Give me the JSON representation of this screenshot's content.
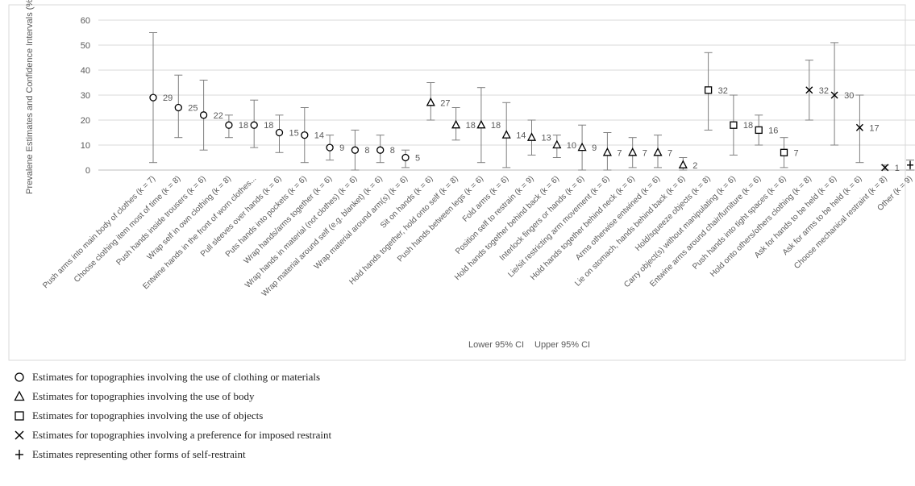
{
  "chart_data": {
    "type": "scatter",
    "ylabel": "Prevalene Estimates and Confidence Intervals (%)",
    "ylim": [
      0,
      60
    ],
    "yticks": [
      0,
      10,
      20,
      30,
      40,
      50,
      60
    ],
    "grid": "horizontal",
    "ci_legend": [
      "Lower 95% CI",
      "Upper 95% CI"
    ],
    "points": [
      {
        "category": "Push arms into main body of clothes (k = 7)",
        "value": 29,
        "lower": 3,
        "upper": 55,
        "group": "clothing"
      },
      {
        "category": "Choose clothing item most of time (k = 8)",
        "value": 25,
        "lower": 13,
        "upper": 38,
        "group": "clothing"
      },
      {
        "category": "Push hands inside trousers (k = 6)",
        "value": 22,
        "lower": 8,
        "upper": 36,
        "group": "clothing"
      },
      {
        "category": "Wrap self in own clothing (k = 8)",
        "value": 18,
        "lower": 13,
        "upper": 22,
        "group": "clothing"
      },
      {
        "category": "Entwine hands in the front of worn clothes...",
        "value": 18,
        "lower": 9,
        "upper": 28,
        "group": "clothing"
      },
      {
        "category": "Pull sleeves over hands (k = 6)",
        "value": 15,
        "lower": 7,
        "upper": 22,
        "group": "clothing"
      },
      {
        "category": "Puts hands into pockets (k = 6)",
        "value": 14,
        "lower": 3,
        "upper": 25,
        "group": "clothing"
      },
      {
        "category": "Wrap hands/arms together (k = 6)",
        "value": 9,
        "lower": 4,
        "upper": 14,
        "group": "clothing"
      },
      {
        "category": "Wrap hands in material (not clothes) (k = 6)",
        "value": 8,
        "lower": 0,
        "upper": 16,
        "group": "clothing"
      },
      {
        "category": "Wrap material around self (e.g. blanket) (k = 6)",
        "value": 8,
        "lower": 3,
        "upper": 14,
        "group": "clothing"
      },
      {
        "category": "Wrap material around arm(s) (k = 6)",
        "value": 5,
        "lower": 1,
        "upper": 8,
        "group": "clothing"
      },
      {
        "category": "Sit on hands (k = 6)",
        "value": 27,
        "lower": 20,
        "upper": 35,
        "group": "body"
      },
      {
        "category": "Hold hands together, hold onto self (k = 8)",
        "value": 18,
        "lower": 12,
        "upper": 25,
        "group": "body"
      },
      {
        "category": "Push hands between legs (k = 6)",
        "value": 18,
        "lower": 3,
        "upper": 33,
        "group": "body"
      },
      {
        "category": "Fold arms (k = 6)",
        "value": 14,
        "lower": 1,
        "upper": 27,
        "group": "body"
      },
      {
        "category": "Position self to restrain (k = 9)",
        "value": 13,
        "lower": 6,
        "upper": 20,
        "group": "body"
      },
      {
        "category": "Hold hands together behind back (k = 6)",
        "value": 10,
        "lower": 5,
        "upper": 14,
        "group": "body"
      },
      {
        "category": "Interlock fingers or hands (k = 6)",
        "value": 9,
        "lower": 0,
        "upper": 18,
        "group": "body"
      },
      {
        "category": "Lie/sit restricting arm movement (k = 6)",
        "value": 7,
        "lower": 0,
        "upper": 15,
        "group": "body"
      },
      {
        "category": "Hold hands together behind neck (k = 6)",
        "value": 7,
        "lower": 1,
        "upper": 13,
        "group": "body"
      },
      {
        "category": "Arms otherwise entwined (k = 6)",
        "value": 7,
        "lower": 1,
        "upper": 14,
        "group": "body"
      },
      {
        "category": "Lie on stomach, hands behind back (k = 6)",
        "value": 2,
        "lower": 0,
        "upper": 5,
        "group": "body"
      },
      {
        "category": "Hold/squeeze objects (k = 8)",
        "value": 32,
        "lower": 16,
        "upper": 47,
        "group": "objects"
      },
      {
        "category": "Carry object(s) without manipulating (k = 6)",
        "value": 18,
        "lower": 6,
        "upper": 30,
        "group": "objects"
      },
      {
        "category": "Entwine arms around chair/furniture (k = 6)",
        "value": 16,
        "lower": 10,
        "upper": 22,
        "group": "objects"
      },
      {
        "category": "Push hands into tight spaces (k = 6)",
        "value": 7,
        "lower": 1,
        "upper": 13,
        "group": "objects"
      },
      {
        "category": "Hold onto others/others clothing (k = 8)",
        "value": 32,
        "lower": 20,
        "upper": 44,
        "group": "imposed"
      },
      {
        "category": "Ask for hands to be held (k = 6)",
        "value": 30,
        "lower": 10,
        "upper": 51,
        "group": "imposed"
      },
      {
        "category": "Ask for arms to be held (k = 6)",
        "value": 17,
        "lower": 3,
        "upper": 30,
        "group": "imposed"
      },
      {
        "category": "Choose mechanical restraint (k = 8)",
        "value": 1,
        "lower": 0,
        "upper": 2,
        "group": "imposed"
      },
      {
        "category": "Other (k = 9)",
        "value": 2,
        "lower": 0,
        "upper": 4,
        "group": "other"
      }
    ]
  },
  "legend": {
    "items": [
      {
        "symbol": "circle",
        "label": "Estimates for topographies involving the use of clothing or materials"
      },
      {
        "symbol": "triangle",
        "label": "Estimates for topographies involving the use of body"
      },
      {
        "symbol": "square",
        "label": "Estimates for topographies involving the use of objects"
      },
      {
        "symbol": "cross-x",
        "label": "Estimates for topographies involving a preference for imposed restraint"
      },
      {
        "symbol": "plus",
        "label": "Estimates representing other forms of self-restraint"
      }
    ]
  },
  "colors": {
    "marker": "#000000",
    "errorbar": "#7f7f7f",
    "grid": "#d9d9d9",
    "text": "#595959",
    "frame": "#d9d9d9"
  }
}
